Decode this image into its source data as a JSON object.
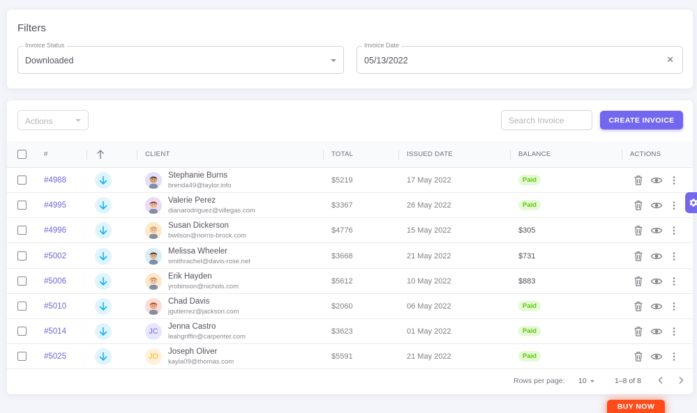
{
  "filters": {
    "title": "Filters",
    "invoice_status": {
      "label": "Invoice Status",
      "value": "Downloaded"
    },
    "invoice_date": {
      "label": "Invoice Date",
      "value": "05/13/2022"
    }
  },
  "toolbar": {
    "actions_placeholder": "Actions",
    "search_placeholder": "Search Invoice",
    "create_label": "CREATE INVOICE"
  },
  "table": {
    "headers": {
      "id": "#",
      "client": "CLIENT",
      "total": "TOTAL",
      "issued": "ISSUED DATE",
      "balance": "BALANCE",
      "actions": "ACTIONS"
    },
    "rows": [
      {
        "id": "#4988",
        "name": "Stephanie Burns",
        "email": "brenda49@taylor.info",
        "total": "$5219",
        "issued": "17 May 2022",
        "balance": "Paid",
        "paid": true,
        "avatar": "face",
        "avatar_bg": "#e4dff9",
        "skin": "#d9a37c",
        "hair": "#4b3a33"
      },
      {
        "id": "#4995",
        "name": "Valerie Perez",
        "email": "dianarodriguez@villegas.com",
        "total": "$3367",
        "issued": "26 May 2022",
        "balance": "Paid",
        "paid": true,
        "avatar": "face",
        "avatar_bg": "#ecd9f5",
        "skin": "#f0bf9a",
        "hair": "#6b3a2a"
      },
      {
        "id": "#4996",
        "name": "Susan Dickerson",
        "email": "bwilson@norris-brock.com",
        "total": "$4776",
        "issued": "15 May 2022",
        "balance": "$305",
        "paid": false,
        "avatar": "face",
        "avatar_bg": "#fde9c9",
        "skin": "#f3c69f",
        "hair": "#d9a25f"
      },
      {
        "id": "#5002",
        "name": "Melissa Wheeler",
        "email": "smithrachel@davis-rose.net",
        "total": "$3668",
        "issued": "21 May 2022",
        "balance": "$731",
        "paid": false,
        "avatar": "face",
        "avatar_bg": "#d6eefa",
        "skin": "#eab48f",
        "hair": "#3e2a22"
      },
      {
        "id": "#5006",
        "name": "Erik Hayden",
        "email": "yrobinson@nichols.com",
        "total": "$5612",
        "issued": "10 May 2022",
        "balance": "$883",
        "paid": false,
        "avatar": "face",
        "avatar_bg": "#fde7cc",
        "skin": "#f2c49b",
        "hair": "#c98e4e"
      },
      {
        "id": "#5010",
        "name": "Chad Davis",
        "email": "jgutierrez@jackson.com",
        "total": "$2060",
        "issued": "06 May 2022",
        "balance": "Paid",
        "paid": true,
        "avatar": "face",
        "avatar_bg": "#fbdcd6",
        "skin": "#f0b38f",
        "hair": "#a4442c"
      },
      {
        "id": "#5014",
        "name": "Jenna Castro",
        "email": "leahgriffin@carpenter.com",
        "total": "$3623",
        "issued": "01 May 2022",
        "balance": "Paid",
        "paid": true,
        "avatar": "initials",
        "initials": "JC",
        "avatar_bg": "#e8e6fd",
        "initials_color": "#7367f0"
      },
      {
        "id": "#5025",
        "name": "Joseph Oliver",
        "email": "kayla09@thomas.com",
        "total": "$5591",
        "issued": "21 May 2022",
        "balance": "Paid",
        "paid": true,
        "avatar": "initials",
        "initials": "JO",
        "avatar_bg": "#fff1dd",
        "initials_color": "#ffb400"
      }
    ]
  },
  "pagination": {
    "rows_label": "Rows per page:",
    "rows_value": "10",
    "range": "1–8 of 8"
  },
  "buy_now": "BUY NOW",
  "colors": {
    "primary": "#7367f0",
    "paid_text": "#56ca00",
    "paid_bg": "#e6f8d8",
    "download_bg": "#dff4fd",
    "download_icon": "#16b1ff",
    "buy_now": "#ff4c1a"
  }
}
